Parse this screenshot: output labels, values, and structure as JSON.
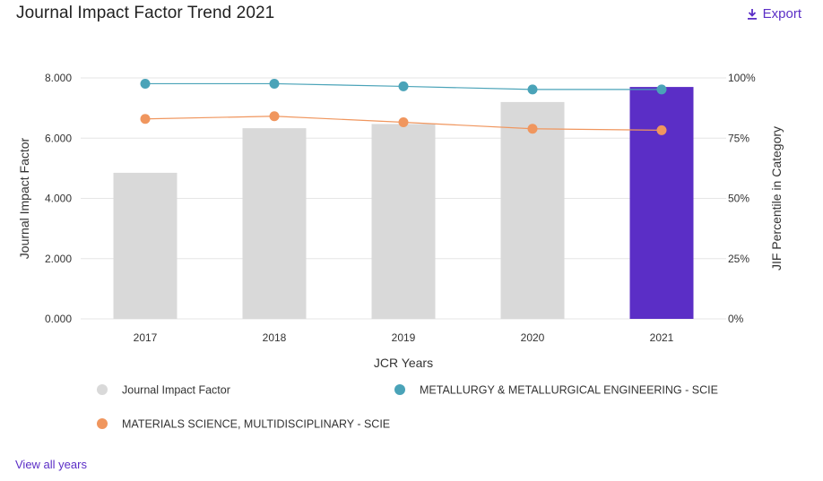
{
  "header": {
    "title": "Journal Impact Factor Trend 2021",
    "export_label": "Export",
    "export_icon": "download-icon"
  },
  "footer": {
    "view_all_label": "View all years"
  },
  "colors": {
    "bar_default": "#d9d9d9",
    "bar_highlight": "#5b2ec6",
    "series_metallurgy": "#4aa3b8",
    "series_materials": "#f0965e",
    "grid": "#e6e6e6",
    "link": "#5b2ec6"
  },
  "chart_data": {
    "type": "bar",
    "xlabel": "JCR Years",
    "ylabel": "Journal Impact Factor",
    "y2label": "JIF Percentile in Category",
    "categories": [
      "2017",
      "2018",
      "2019",
      "2020",
      "2021"
    ],
    "ylim": [
      0,
      8
    ],
    "yticks": [
      "0.000",
      "2.000",
      "4.000",
      "6.000",
      "8.000"
    ],
    "y2lim": [
      0,
      100
    ],
    "y2ticks": [
      "0%",
      "25%",
      "50%",
      "75%",
      "100%"
    ],
    "bars": {
      "name": "Journal Impact Factor",
      "values": [
        4.85,
        6.33,
        6.47,
        7.2,
        7.7
      ],
      "highlight_category": "2021"
    },
    "lines": [
      {
        "name": "METALLURGY & METALLURGICAL ENGINEERING - SCIE",
        "axis": "right",
        "values": [
          97.6,
          97.6,
          96.5,
          95.2,
          95.2
        ]
      },
      {
        "name": "MATERIALS SCIENCE, MULTIDISCIPLINARY - SCIE",
        "axis": "right",
        "values": [
          83.0,
          84.1,
          81.6,
          78.9,
          78.3
        ]
      }
    ],
    "grid": true,
    "legend_position": "bottom"
  }
}
